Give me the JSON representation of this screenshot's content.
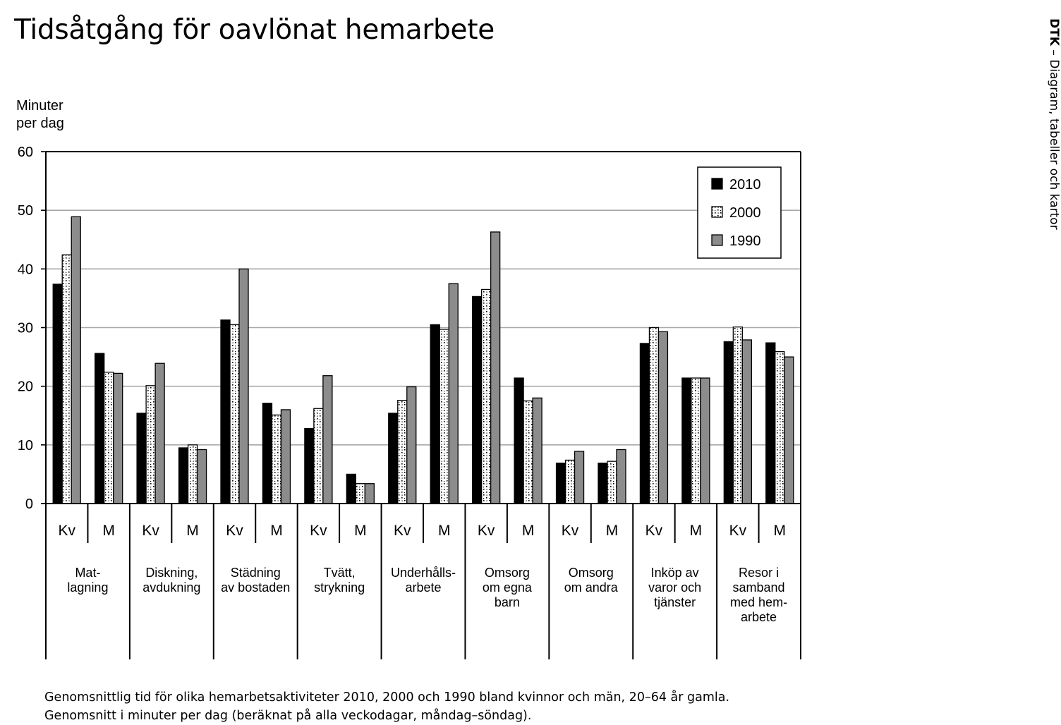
{
  "header": {
    "title": "Tidsåtgång för oavlönat hemarbete",
    "side_label_bold": "DTK",
    "side_label_rest": " – Diagram, tabeller och kartor"
  },
  "footnote": {
    "line1": "Genomsnittlig tid för olika hemarbetsaktiviteter 2010, 2000 och 1990 bland kvinnor och män, 20–64 år gamla.",
    "line2": "Genomsnitt i minuter per dag (beräknat på alla veckodagar, måndag–söndag)."
  },
  "chart_data": {
    "type": "bar",
    "ylabel": "Minuter\nper dag",
    "ylim": [
      0,
      60
    ],
    "yticks": [
      0,
      10,
      20,
      30,
      40,
      50,
      60
    ],
    "grid": true,
    "legend_position": "top-right",
    "groups": [
      {
        "label": "Mat-\nlagning",
        "subcategories": [
          "Kv",
          "M"
        ]
      },
      {
        "label": "Diskning,\navdukning",
        "subcategories": [
          "Kv",
          "M"
        ]
      },
      {
        "label": "Städning\nav bostaden",
        "subcategories": [
          "Kv",
          "M"
        ]
      },
      {
        "label": "Tvätt,\nstrykning",
        "subcategories": [
          "Kv",
          "M"
        ]
      },
      {
        "label": "Underhålls-\narbete",
        "subcategories": [
          "Kv",
          "M"
        ]
      },
      {
        "label": "Omsorg\nom egna\nbarn",
        "subcategories": [
          "Kv",
          "M"
        ]
      },
      {
        "label": "Omsorg\nom andra",
        "subcategories": [
          "Kv",
          "M"
        ]
      },
      {
        "label": "Inköp av\nvaror och\ntjänster",
        "subcategories": [
          "Kv",
          "M"
        ]
      },
      {
        "label": "Resor i\nsamband\nmed hem-\narbete",
        "subcategories": [
          "Kv",
          "M"
        ]
      }
    ],
    "series": [
      {
        "name": "2010",
        "fill": "#000000",
        "values": [
          37.4,
          25.6,
          15.4,
          9.5,
          31.3,
          17.1,
          12.8,
          5.0,
          15.4,
          30.5,
          35.3,
          21.4,
          6.9,
          6.9,
          27.3,
          21.4,
          27.6,
          27.4
        ]
      },
      {
        "name": "2000",
        "fill": "dotted",
        "values": [
          42.4,
          22.4,
          20.1,
          10.0,
          30.5,
          15.1,
          16.2,
          3.4,
          17.6,
          29.7,
          36.5,
          17.5,
          7.4,
          7.2,
          30.0,
          21.4,
          30.1,
          25.9
        ]
      },
      {
        "name": "1990",
        "fill": "#8c8c8c",
        "values": [
          48.9,
          22.2,
          23.9,
          9.2,
          40.0,
          16.0,
          21.8,
          3.4,
          19.9,
          37.5,
          46.3,
          18.0,
          8.9,
          9.2,
          29.3,
          21.4,
          27.9,
          25.0
        ]
      }
    ]
  }
}
